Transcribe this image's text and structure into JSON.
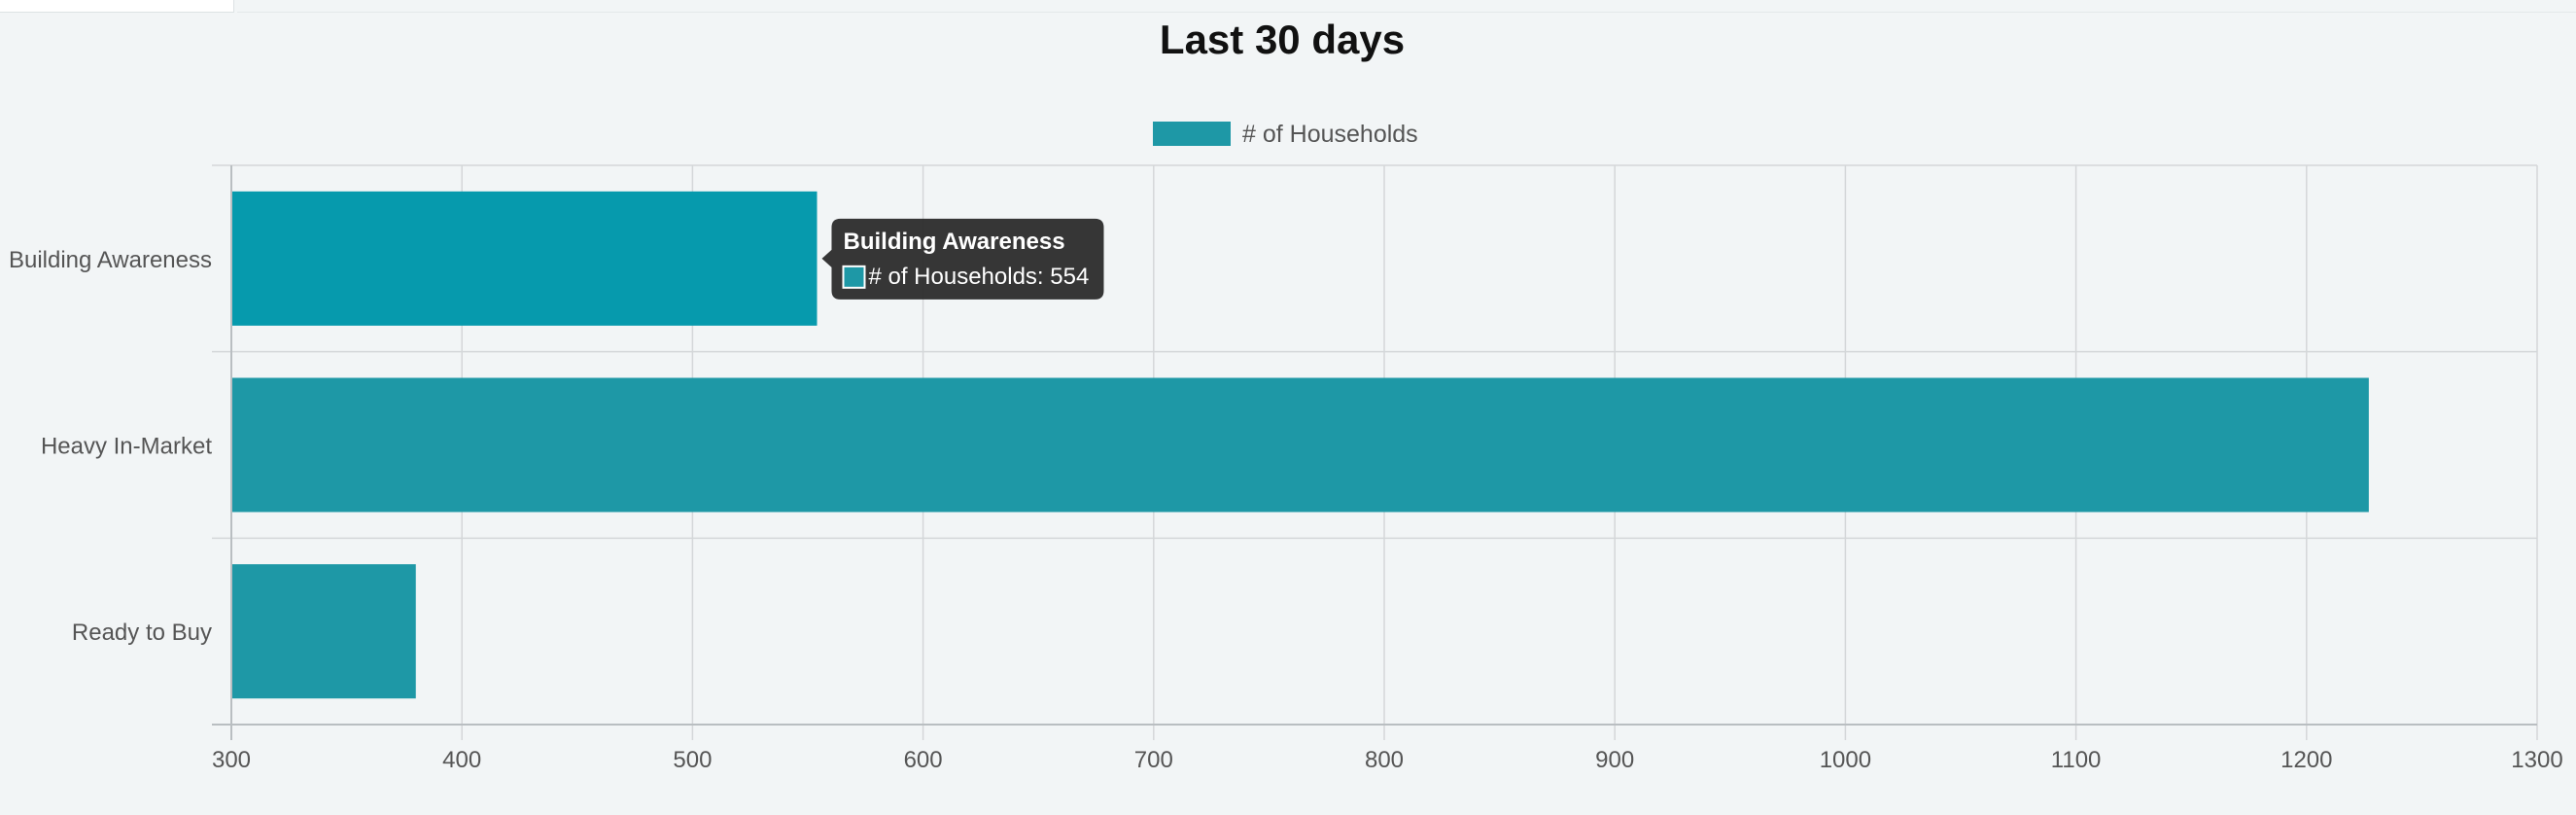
{
  "chart_data": {
    "type": "bar",
    "orientation": "horizontal",
    "title": "Last 30 days",
    "categories": [
      "Building Awareness",
      "Heavy In-Market",
      "Ready to Buy"
    ],
    "series": [
      {
        "name": "# of Households",
        "values": [
          554,
          1227,
          380
        ],
        "color": "#1e98a6"
      }
    ],
    "highlight_color": "#069aad",
    "xlim": [
      300,
      1300
    ],
    "xticks": [
      300,
      400,
      500,
      600,
      700,
      800,
      900,
      1000,
      1100,
      1200,
      1300
    ],
    "grid": true,
    "legend_position": "top-center",
    "tooltip": {
      "title": "Building Awareness",
      "series": "# of Households",
      "value": 554,
      "text": "# of Households: 554"
    }
  }
}
